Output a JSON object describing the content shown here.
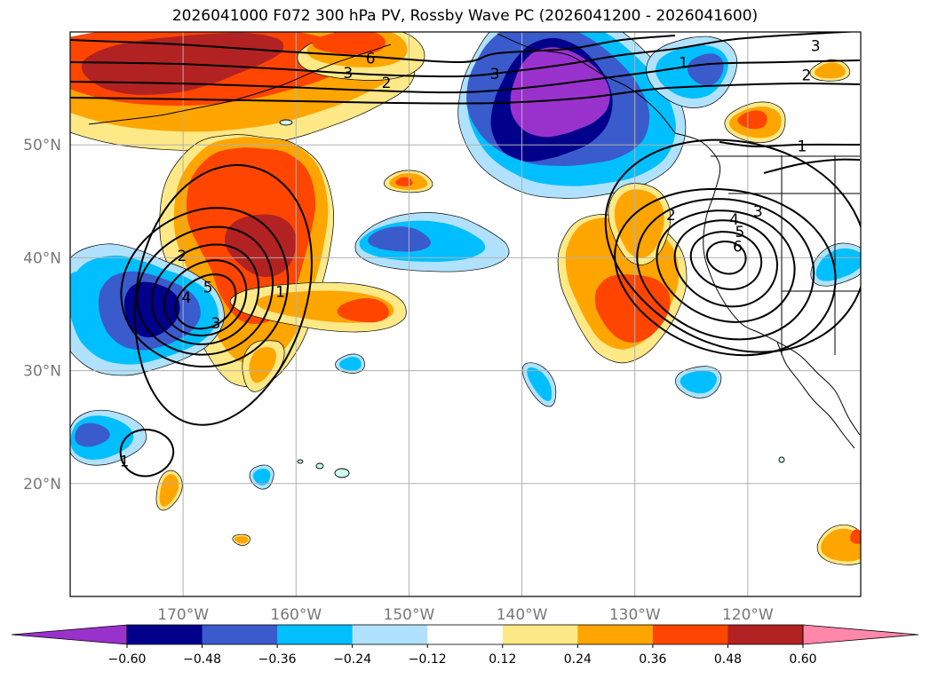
{
  "title": "2026041000 F072 300 hPa PV, Rossby Wave PC (2026041200 - 2026041600)",
  "map": {
    "projection": "lat-lon",
    "lon_range": [
      -180,
      -110
    ],
    "lat_range": [
      10,
      60
    ],
    "lon_ticks": [
      {
        "lon": -170,
        "label": "170°W"
      },
      {
        "lon": -160,
        "label": "160°W"
      },
      {
        "lon": -150,
        "label": "150°W"
      },
      {
        "lon": -140,
        "label": "140°W"
      },
      {
        "lon": -130,
        "label": "130°W"
      },
      {
        "lon": -120,
        "label": "120°W"
      }
    ],
    "lat_ticks": [
      {
        "lat": 20,
        "label": "20°N"
      },
      {
        "lat": 30,
        "label": "30°N"
      },
      {
        "lat": 40,
        "label": "40°N"
      },
      {
        "lat": 50,
        "label": "50°N"
      }
    ],
    "gridlines": true,
    "contour_labels": [
      {
        "text": "6",
        "lon": -153.4,
        "lat": 57.7
      },
      {
        "text": "3",
        "lon": -155.4,
        "lat": 56.4
      },
      {
        "text": "2",
        "lon": -152.0,
        "lat": 55.5
      },
      {
        "text": "3",
        "lon": -142.4,
        "lat": 56.3
      },
      {
        "text": "1",
        "lon": -125.7,
        "lat": 57.3
      },
      {
        "text": "3",
        "lon": -114.0,
        "lat": 58.8
      },
      {
        "text": "2",
        "lon": -114.8,
        "lat": 56.2
      },
      {
        "text": "1",
        "lon": -115.2,
        "lat": 49.9
      },
      {
        "text": "2",
        "lon": -126.8,
        "lat": 43.8
      },
      {
        "text": "3",
        "lon": -119.1,
        "lat": 44.1
      },
      {
        "text": "4",
        "lon": -121.2,
        "lat": 43.4
      },
      {
        "text": "5",
        "lon": -120.7,
        "lat": 42.3
      },
      {
        "text": "6",
        "lon": -120.9,
        "lat": 41.0
      },
      {
        "text": "2",
        "lon": -170.1,
        "lat": 40.2
      },
      {
        "text": "5",
        "lon": -167.8,
        "lat": 37.4
      },
      {
        "text": "4",
        "lon": -169.7,
        "lat": 36.5
      },
      {
        "text": "3",
        "lon": -167.1,
        "lat": 34.2
      },
      {
        "text": "1",
        "lon": -161.4,
        "lat": 37.0
      },
      {
        "text": "1",
        "lon": -175.2,
        "lat": 22.0
      }
    ]
  },
  "colorbar": {
    "levels": [
      -0.6,
      -0.48,
      -0.36,
      -0.24,
      -0.12,
      0.12,
      0.24,
      0.36,
      0.48,
      0.6
    ],
    "tick_labels": [
      "−0.60",
      "−0.48",
      "−0.36",
      "−0.24",
      "−0.12",
      "0.12",
      "0.24",
      "0.36",
      "0.48",
      "0.60"
    ],
    "colors": [
      "#9932cc",
      "#00008b",
      "#3a5bcc",
      "#00bfff",
      "#b0e2ff",
      "#ffffff",
      "#ffe987",
      "#ffa500",
      "#ff4500",
      "#b22222",
      "#ff88aa"
    ],
    "extend": "both"
  }
}
